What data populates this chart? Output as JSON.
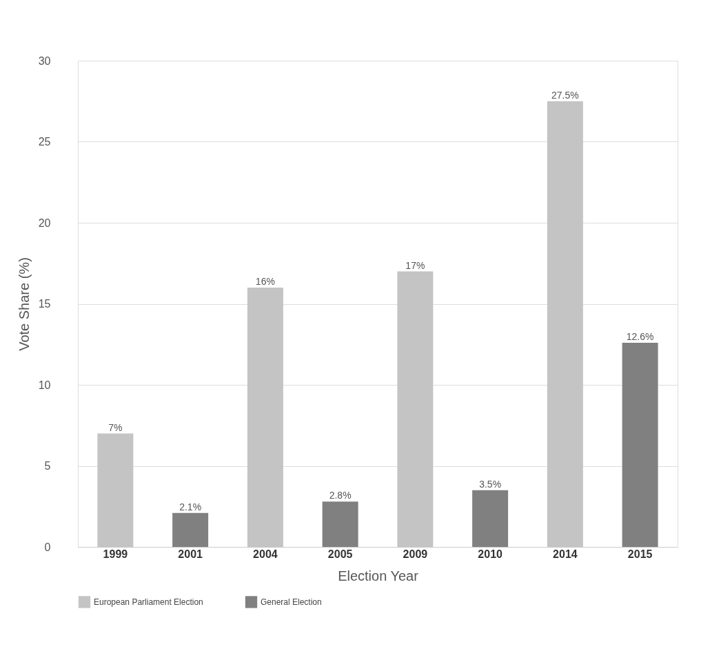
{
  "chart_data": {
    "type": "bar",
    "xlabel": "Election Year",
    "ylabel": "Vote Share (%)",
    "categories": [
      "1999",
      "2001",
      "2004",
      "2005",
      "2009",
      "2010",
      "2014",
      "2015"
    ],
    "series": [
      {
        "name": "European Parliament Election",
        "color": "#c4c4c4",
        "values": [
          7,
          null,
          16,
          null,
          17,
          null,
          27.5,
          null
        ],
        "value_labels": [
          "7%",
          null,
          "16%",
          null,
          "17%",
          null,
          "27.5%",
          null
        ]
      },
      {
        "name": "General Election",
        "color": "#808080",
        "values": [
          null,
          2.1,
          null,
          2.8,
          null,
          3.5,
          null,
          12.6
        ],
        "value_labels": [
          null,
          "2.1%",
          null,
          "2.8%",
          null,
          "3.5%",
          null,
          "12.6%"
        ]
      }
    ],
    "ylim": [
      0,
      30
    ],
    "yticks": [
      0,
      5,
      10,
      15,
      20,
      25,
      30
    ],
    "grid": "y",
    "legend": "bottom"
  }
}
